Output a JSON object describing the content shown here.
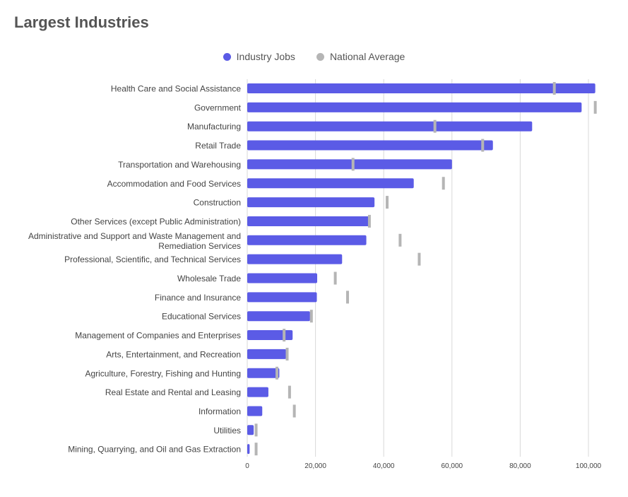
{
  "page": {
    "title": "Largest Industries"
  },
  "colors": {
    "industry": "#5b5be6",
    "national": "#b5b5b5",
    "grid": "#d8d8d8",
    "label": "#444444"
  },
  "chart_data": {
    "type": "bar",
    "orientation": "horizontal",
    "title": "Largest Industries",
    "legend_position": "top-center",
    "grid": true,
    "xlim": [
      0,
      102000
    ],
    "xticks": [
      0,
      20000,
      40000,
      60000,
      80000,
      100000
    ],
    "xtick_labels": [
      "0",
      "20,000",
      "40,000",
      "60,000",
      "80,000",
      "100,000"
    ],
    "categories": [
      [
        "Health Care and Social Assistance"
      ],
      [
        "Government"
      ],
      [
        "Manufacturing"
      ],
      [
        "Retail Trade"
      ],
      [
        "Transportation and Warehousing"
      ],
      [
        "Accommodation and Food Services"
      ],
      [
        "Construction"
      ],
      [
        "Other Services (except Public Administration)"
      ],
      [
        "Administrative and Support and Waste Management and",
        "Remediation Services"
      ],
      [
        "Professional, Scientific, and Technical Services"
      ],
      [
        "Wholesale Trade"
      ],
      [
        "Finance and Insurance"
      ],
      [
        "Educational Services"
      ],
      [
        "Management of Companies and Enterprises"
      ],
      [
        "Arts, Entertainment, and Recreation"
      ],
      [
        "Agriculture, Forestry, Fishing and Hunting"
      ],
      [
        "Real Estate and Rental and Leasing"
      ],
      [
        "Information"
      ],
      [
        "Utilities"
      ],
      [
        "Mining, Quarrying, and Oil and Gas Extraction"
      ]
    ],
    "series": [
      {
        "name": "Industry Jobs",
        "type": "bar",
        "values": [
          102000,
          98000,
          83500,
          72000,
          60000,
          48800,
          37300,
          36000,
          34900,
          27800,
          20500,
          20400,
          18400,
          13300,
          11400,
          9400,
          6200,
          4400,
          1900,
          700
        ]
      },
      {
        "name": "National Average",
        "type": "marker",
        "values": [
          90000,
          102000,
          55000,
          69000,
          31000,
          57500,
          41000,
          35800,
          44800,
          50400,
          25800,
          29400,
          18800,
          10800,
          11700,
          8700,
          12400,
          13800,
          2600,
          2600
        ]
      }
    ]
  }
}
